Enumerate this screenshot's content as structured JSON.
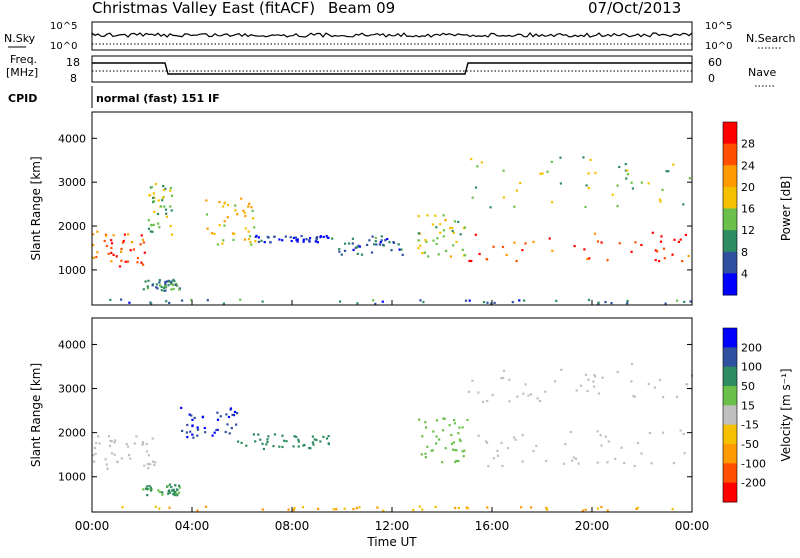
{
  "title": {
    "station": "Christmas Valley East (fitACF)",
    "beam": "Beam 09",
    "date": "07/Oct/2013"
  },
  "panels": {
    "nsky": {
      "left_label": "N.Sky",
      "left_ticks": [
        "10^5",
        "10^0"
      ],
      "right_label": "N.Search",
      "right_ticks": [
        "10^5",
        "10^0"
      ]
    },
    "freq": {
      "left_label_line1": "Freq.",
      "left_label_line2": "[MHz]",
      "left_ticks": [
        "18",
        "8"
      ],
      "right_label": "Nave",
      "right_ticks": [
        "60",
        "0"
      ]
    },
    "cpid": {
      "label": "CPID",
      "value": "normal (fast) 151 IF"
    }
  },
  "chart_data": [
    {
      "type": "heatmap",
      "title": "",
      "xlabel": "",
      "ylabel": "Slant Range [km]",
      "x_ticks": [
        "00:00",
        "04:00",
        "08:00",
        "12:00",
        "16:00",
        "20:00",
        "00:00"
      ],
      "y_ticks": [
        1000,
        2000,
        3000,
        4000
      ],
      "ylim": [
        200,
        4600
      ],
      "colorbar": {
        "label": "Power [dB]",
        "ticks": [
          4,
          8,
          12,
          16,
          20,
          24,
          28
        ],
        "colors": [
          "#0000ff",
          "#3050a0",
          "#2f8c60",
          "#6ac04a",
          "#f4c000",
          "#ff9a00",
          "#ff5000",
          "#ff0000"
        ]
      },
      "echo_regions": [
        {
          "name": "near band",
          "t_start": 0.0,
          "t_end": 2.2,
          "r_start": 1100,
          "r_end": 1900,
          "value": 26
        },
        {
          "name": "near band",
          "t_start": 2.2,
          "t_end": 3.2,
          "r_start": 1800,
          "r_end": 3000,
          "value": 14
        },
        {
          "name": "arc",
          "t_start": 4.3,
          "t_end": 6.5,
          "r_start": 1600,
          "r_end": 2700,
          "value": 18
        },
        {
          "name": "arc",
          "t_start": 6.5,
          "t_end": 9.5,
          "r_start": 1650,
          "r_end": 1800,
          "value": 4
        },
        {
          "name": "patches",
          "t_start": 9.5,
          "t_end": 12.4,
          "r_start": 1350,
          "r_end": 1800,
          "value": 8
        },
        {
          "name": "ground",
          "t_start": 0.2,
          "t_end": 24.0,
          "r_start": 250,
          "r_end": 350,
          "value": 8
        },
        {
          "name": "band",
          "t_start": 13.0,
          "t_end": 15.0,
          "r_start": 1300,
          "r_end": 2300,
          "value": 16
        },
        {
          "name": "band",
          "t_start": 15.0,
          "t_end": 24.0,
          "r_start": 1200,
          "r_end": 1900,
          "value": 28
        },
        {
          "name": "upper band",
          "t_start": 15.0,
          "t_end": 24.0,
          "r_start": 2400,
          "r_end": 3600,
          "value": 14
        },
        {
          "name": "low blob",
          "t_start": 2.0,
          "t_end": 3.5,
          "r_start": 550,
          "r_end": 800,
          "value": 10
        }
      ]
    },
    {
      "type": "heatmap",
      "title": "",
      "xlabel": "Time UT",
      "ylabel": "Slant Range [km]",
      "x_ticks": [
        "00:00",
        "04:00",
        "08:00",
        "12:00",
        "16:00",
        "20:00",
        "00:00"
      ],
      "y_ticks": [
        1000,
        2000,
        3000,
        4000
      ],
      "ylim": [
        200,
        4600
      ],
      "colorbar": {
        "label": "Velocity [m s⁻¹]",
        "ticks": [
          200,
          100,
          50,
          15,
          -15,
          -50,
          -100,
          -200
        ],
        "colors": [
          "#0000ff",
          "#3050a0",
          "#2f8c60",
          "#6ac04a",
          "#c0c0c0",
          "#f4c000",
          "#ff9a00",
          "#ff5000",
          "#ff0000"
        ]
      },
      "echo_regions": [
        {
          "name": "ground scatter",
          "t_start": 0.0,
          "t_end": 2.5,
          "r_start": 1200,
          "r_end": 2000,
          "value": 0
        },
        {
          "name": "fast arc",
          "t_start": 3.5,
          "t_end": 5.8,
          "r_start": 1900,
          "r_end": 2600,
          "value": 200
        },
        {
          "name": "arc",
          "t_start": 5.8,
          "t_end": 9.5,
          "r_start": 1650,
          "r_end": 2000,
          "value": 60
        },
        {
          "name": "low blob",
          "t_start": 2.0,
          "t_end": 3.5,
          "r_start": 600,
          "r_end": 850,
          "value": 50
        },
        {
          "name": "ground",
          "t_start": 0.2,
          "t_end": 24.0,
          "r_start": 250,
          "r_end": 350,
          "value": -50
        },
        {
          "name": "band",
          "t_start": 13.0,
          "t_end": 15.0,
          "r_start": 1300,
          "r_end": 2400,
          "value": 30
        },
        {
          "name": "band",
          "t_start": 15.0,
          "t_end": 24.0,
          "r_start": 1250,
          "r_end": 2100,
          "value": 0
        },
        {
          "name": "upper band",
          "t_start": 15.0,
          "t_end": 24.0,
          "r_start": 2700,
          "r_end": 3600,
          "value": 0
        }
      ]
    }
  ]
}
